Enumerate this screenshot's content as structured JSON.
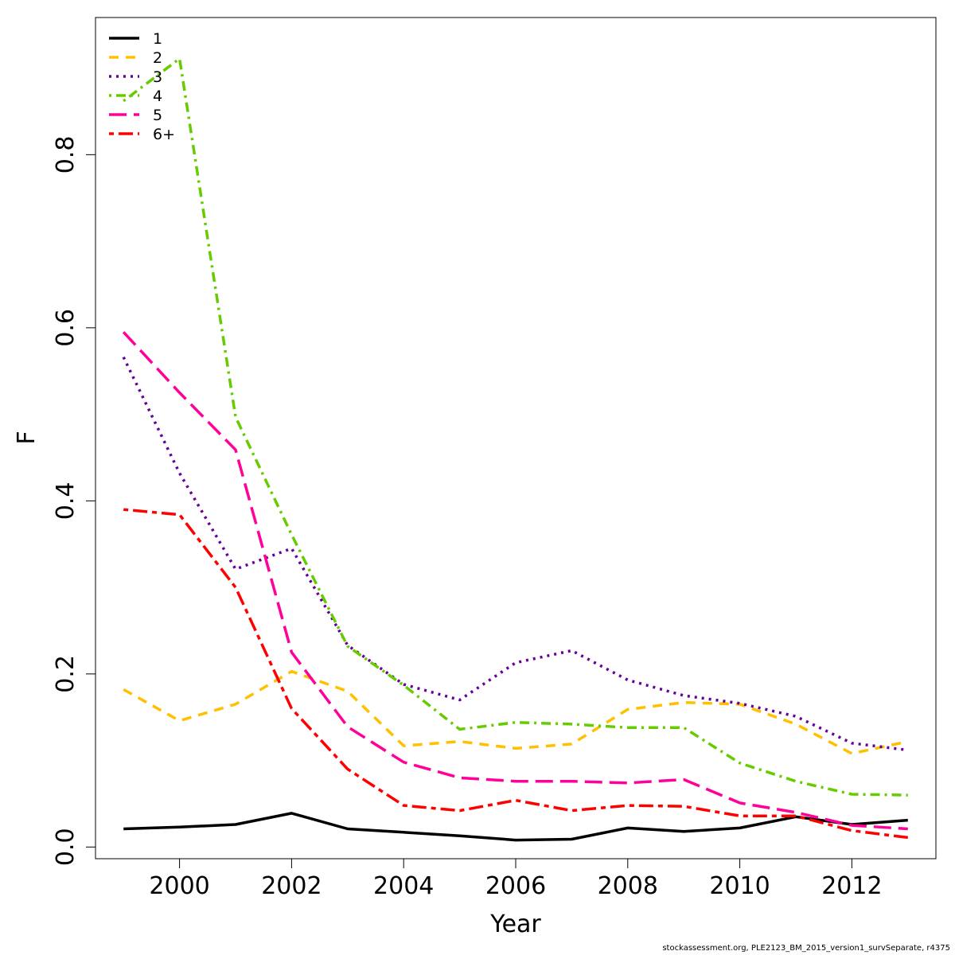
{
  "chart_data": {
    "type": "line",
    "xlabel": "Year",
    "ylabel": "F",
    "xlim": [
      1998.5,
      2013.5
    ],
    "ylim": [
      -0.0135,
      0.9585
    ],
    "x_ticks": [
      2000,
      2002,
      2004,
      2006,
      2008,
      2010,
      2012
    ],
    "y_ticks": [
      0.0,
      0.2,
      0.4,
      0.6,
      0.8
    ],
    "y_tick_labels": [
      "0.0",
      "0.2",
      "0.4",
      "0.6",
      "0.8"
    ],
    "x": [
      1999,
      2000,
      2001,
      2002,
      2003,
      2004,
      2005,
      2006,
      2007,
      2008,
      2009,
      2010,
      2011,
      2012,
      2013
    ],
    "legend_position": "top-left",
    "series": [
      {
        "name": "1",
        "color": "#000000",
        "dash": "solid",
        "values": [
          0.021,
          0.023,
          0.026,
          0.039,
          0.021,
          0.017,
          0.013,
          0.008,
          0.009,
          0.022,
          0.018,
          0.022,
          0.035,
          0.026,
          0.031
        ]
      },
      {
        "name": "2",
        "color": "#FFC000",
        "dash": "dashed",
        "values": [
          0.182,
          0.146,
          0.165,
          0.203,
          0.18,
          0.117,
          0.122,
          0.114,
          0.119,
          0.159,
          0.167,
          0.165,
          0.142,
          0.108,
          0.122
        ]
      },
      {
        "name": "3",
        "color": "#660099",
        "dash": "dotted",
        "values": [
          0.566,
          0.432,
          0.321,
          0.345,
          0.233,
          0.188,
          0.17,
          0.213,
          0.227,
          0.193,
          0.175,
          0.166,
          0.151,
          0.12,
          0.112
        ]
      },
      {
        "name": "4",
        "color": "#66CC00",
        "dash": "dotdash",
        "values": [
          0.862,
          0.911,
          0.497,
          0.361,
          0.232,
          0.187,
          0.136,
          0.144,
          0.142,
          0.138,
          0.138,
          0.097,
          0.076,
          0.061,
          0.06
        ]
      },
      {
        "name": "5",
        "color": "#FF0099",
        "dash": "longdash",
        "values": [
          0.595,
          0.525,
          0.459,
          0.225,
          0.139,
          0.098,
          0.08,
          0.076,
          0.076,
          0.074,
          0.078,
          0.051,
          0.04,
          0.025,
          0.021
        ]
      },
      {
        "name": "6+",
        "color": "#FF0000",
        "dash": "twodash",
        "values": [
          0.39,
          0.384,
          0.3,
          0.16,
          0.09,
          0.048,
          0.042,
          0.054,
          0.042,
          0.048,
          0.047,
          0.036,
          0.036,
          0.019,
          0.011
        ]
      }
    ]
  },
  "footer": "stockassessment.org, PLE2123_BM_2015_version1_survSeparate, r4375"
}
